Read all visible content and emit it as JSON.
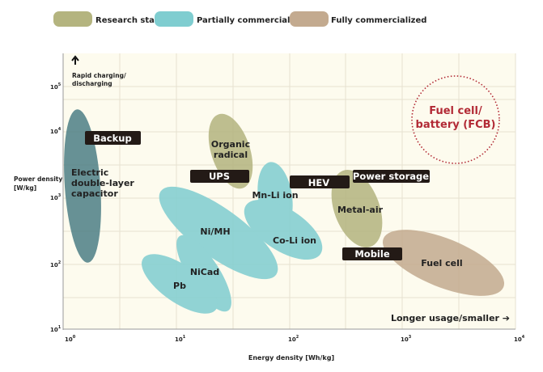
{
  "legend": [
    {
      "label": "Research stage",
      "color": "#b4b47f"
    },
    {
      "label": "Partially commercialized",
      "color": "#7fcdd0"
    },
    {
      "label": "Fully commercialized",
      "color": "#c3aa8f"
    }
  ],
  "axes": {
    "xlabel": "Energy density [Wh/kg]",
    "ylabel_line1": "Power density",
    "ylabel_line2": "[W/kg]",
    "x_ticks": [
      "10",
      "10",
      "10",
      "10",
      "10"
    ],
    "x_exps": [
      "0",
      "1",
      "2",
      "3",
      "4"
    ],
    "y_ticks": [
      "10",
      "10",
      "10",
      "10",
      "10"
    ],
    "y_exps": [
      "5",
      "4",
      "3",
      "2",
      "1"
    ]
  },
  "annotations": {
    "top_line1": "Rapid charging/",
    "top_line2": "discharging",
    "bottom_right": "Longer usage/smaller ➔",
    "fcb_line1": "Fuel cell/",
    "fcb_line2": "battery (FCB)"
  },
  "regions": {
    "edlc": [
      "Electric",
      "double-layer",
      "capacitor"
    ],
    "organic": [
      "Organic",
      "radical"
    ],
    "nimh": "Ni/MH",
    "nicad": "NiCad",
    "pb": "Pb",
    "mnli": "Mn-Li ion",
    "coli": "Co-Li ion",
    "metalair": "Metal-air",
    "fuelcell": "Fuel cell"
  },
  "tags": {
    "backup": "Backup",
    "ups": "UPS",
    "hev": "HEV",
    "power_storage": "Power storage",
    "mobile": "Mobile"
  },
  "colors": {
    "research": "#b4b47f",
    "partial": "#7fcdd0",
    "full": "#c3aa8f",
    "edlc": "#4e7f86",
    "fcb": "#b22a35",
    "plot_bg": "#fdfbee"
  }
}
